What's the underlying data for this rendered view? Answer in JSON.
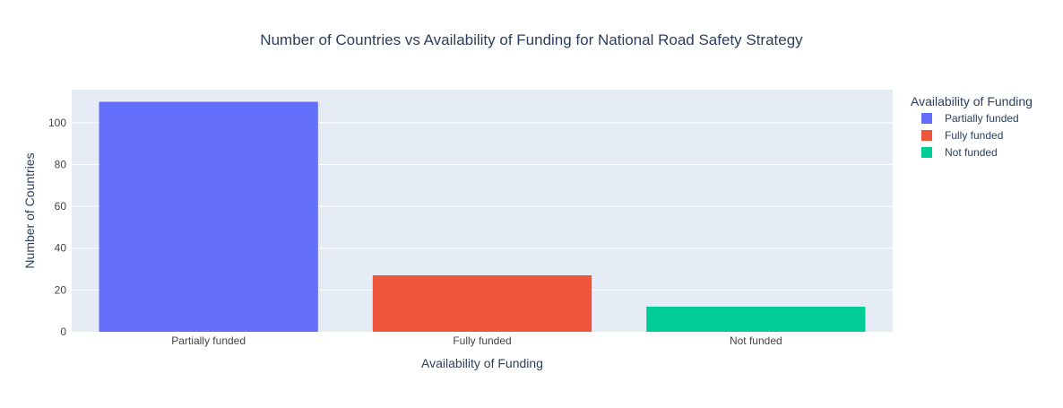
{
  "chart_data": {
    "type": "bar",
    "title": "Number of Countries vs Availability of Funding for National Road Safety Strategy",
    "xlabel": "Availability of Funding",
    "ylabel": "Number of Countries",
    "categories": [
      "Partially funded",
      "Fully funded",
      "Not funded"
    ],
    "values": [
      110,
      27,
      12
    ],
    "colors": [
      "#636EFA",
      "#EF553B",
      "#00CC96"
    ],
    "ylim": [
      0,
      115.8
    ],
    "yticks": [
      0,
      20,
      40,
      60,
      80,
      100
    ],
    "grid": true,
    "legend": {
      "title": "Availability of Funding",
      "placement": "top-right",
      "items": [
        "Partially funded",
        "Fully funded",
        "Not funded"
      ]
    }
  },
  "colors": {
    "plot_background": "#E5ECF6",
    "grid": "#FFFFFF",
    "text": "#2A3F5F",
    "tick_text": "#444444"
  }
}
